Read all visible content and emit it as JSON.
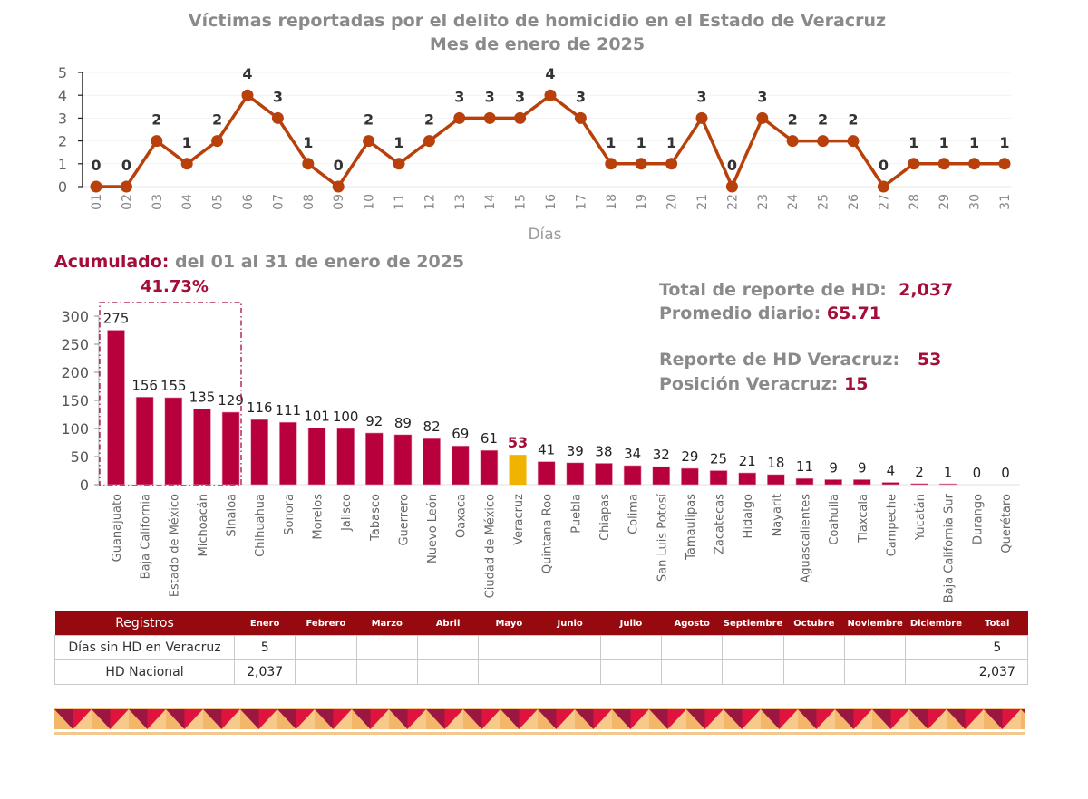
{
  "header": {
    "title_line1": "Víctimas reportadas por el delito de homicidio en el Estado de Veracruz",
    "title_line2": "Mes de enero de 2025"
  },
  "colors": {
    "line": "#b7400b",
    "bar": "#b8003c",
    "highlight_bar": "#f0b400",
    "accent_text": "#a50d38",
    "gray_text": "#8a8a8a",
    "table_header": "#960a0f"
  },
  "chart_data": [
    {
      "type": "line",
      "title": "Víctimas reportadas por el delito de homicidio en el Estado de Veracruz - Mes de enero de 2025",
      "xlabel": "Días",
      "ylabel": "",
      "ylim": [
        0,
        5
      ],
      "yticks": [
        0,
        1,
        2,
        3,
        4,
        5
      ],
      "grid": true,
      "x": [
        "01",
        "02",
        "03",
        "04",
        "05",
        "06",
        "07",
        "08",
        "09",
        "10",
        "11",
        "12",
        "13",
        "14",
        "15",
        "16",
        "17",
        "18",
        "19",
        "20",
        "21",
        "22",
        "23",
        "24",
        "25",
        "26",
        "27",
        "28",
        "29",
        "30",
        "31"
      ],
      "series": [
        {
          "name": "Víctimas",
          "values": [
            0,
            0,
            2,
            1,
            2,
            4,
            3,
            1,
            0,
            2,
            1,
            2,
            3,
            3,
            3,
            4,
            3,
            1,
            1,
            1,
            3,
            0,
            3,
            2,
            2,
            2,
            0,
            1,
            1,
            1,
            1
          ]
        }
      ]
    },
    {
      "type": "bar",
      "title": "Acumulado: del 01 al 31 de enero de 2025",
      "xlabel": "",
      "ylabel": "",
      "ylim": [
        0,
        300
      ],
      "yticks": [
        0,
        50,
        100,
        150,
        200,
        250,
        300
      ],
      "grid": false,
      "categories": [
        "Guanajuato",
        "Baja California",
        "Estado de México",
        "Michoacán",
        "Sinaloa",
        "Chihuahua",
        "Sonora",
        "Morelos",
        "Jalisco",
        "Tabasco",
        "Guerrero",
        "Nuevo León",
        "Oaxaca",
        "Ciudad de México",
        "Veracruz",
        "Quintana Roo",
        "Puebla",
        "Chiapas",
        "Colima",
        "San Luis Potosí",
        "Tamaulipas",
        "Zacatecas",
        "Hidalgo",
        "Nayarit",
        "Aguascalientes",
        "Coahuila",
        "Tlaxcala",
        "Campeche",
        "Yucatán",
        "Baja California Sur",
        "Durango",
        "Querétaro"
      ],
      "values": [
        275,
        156,
        155,
        135,
        129,
        116,
        111,
        101,
        100,
        92,
        89,
        82,
        69,
        61,
        53,
        41,
        39,
        38,
        34,
        32,
        29,
        25,
        21,
        18,
        11,
        9,
        9,
        4,
        2,
        1,
        0,
        0
      ],
      "highlight_category": "Veracruz",
      "annotation": {
        "text": "41.73%",
        "covers_categories": [
          "Guanajuato",
          "Baja California",
          "Estado de México",
          "Michoacán",
          "Sinaloa"
        ]
      }
    }
  ],
  "accumulated": {
    "label": "Acumulado:",
    "range": " del 01 al 31 de enero de 2025",
    "top5_percent": "41.73%"
  },
  "stats": {
    "total_label": "Total de reporte de HD:",
    "total_value": "2,037",
    "avg_label": "Promedio diario:",
    "avg_value": "65.71",
    "ver_label": "Reporte de HD Veracruz:",
    "ver_value": "53",
    "pos_label": "Posición Veracruz:",
    "pos_value": "15"
  },
  "table": {
    "headers": [
      "Registros",
      "Enero",
      "Febrero",
      "Marzo",
      "Abril",
      "Mayo",
      "Junio",
      "Julio",
      "Agosto",
      "Septiembre",
      "Octubre",
      "Noviembre",
      "Diciembre",
      "Total"
    ],
    "rows": [
      [
        "Días sin HD en Veracruz",
        "5",
        "",
        "",
        "",
        "",
        "",
        "",
        "",
        "",
        "",
        "",
        "",
        "5"
      ],
      [
        "HD Nacional",
        "2,037",
        "",
        "",
        "",
        "",
        "",
        "",
        "",
        "",
        "",
        "",
        "",
        "2,037"
      ]
    ]
  }
}
